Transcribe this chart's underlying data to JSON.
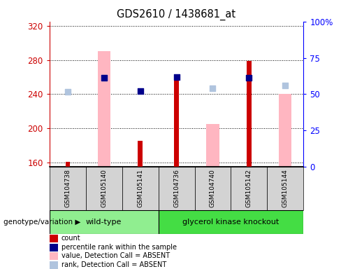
{
  "title": "GDS2610 / 1438681_at",
  "samples": [
    "GSM104738",
    "GSM105140",
    "GSM105141",
    "GSM104736",
    "GSM104740",
    "GSM105142",
    "GSM105144"
  ],
  "wt_indices": [
    0,
    1,
    2
  ],
  "gk_indices": [
    3,
    4,
    5,
    6
  ],
  "wt_label": "wild-type",
  "gk_label": "glycerol kinase knockout",
  "wt_color": "#90ee90",
  "gk_color": "#44dd44",
  "count_values": [
    161,
    null,
    185,
    261,
    null,
    279,
    null
  ],
  "percentile_rank_values": [
    null,
    259,
    244,
    260,
    null,
    259,
    null
  ],
  "value_absent": [
    null,
    290,
    null,
    null,
    205,
    null,
    240
  ],
  "rank_absent": [
    243,
    259,
    null,
    null,
    247,
    null,
    250
  ],
  "ylim_left": [
    155,
    325
  ],
  "ylim_right": [
    0,
    100
  ],
  "yticks_left": [
    160,
    200,
    240,
    280,
    320
  ],
  "yticks_right": [
    0,
    25,
    50,
    75,
    100
  ],
  "count_color": "#cc0000",
  "percentile_color": "#00008b",
  "value_absent_color": "#ffb6c1",
  "rank_absent_color": "#b0c4de",
  "bar_bg_color": "#d3d3d3",
  "pink_bar_width": 0.35,
  "red_bar_width": 0.12,
  "square_size": 35
}
